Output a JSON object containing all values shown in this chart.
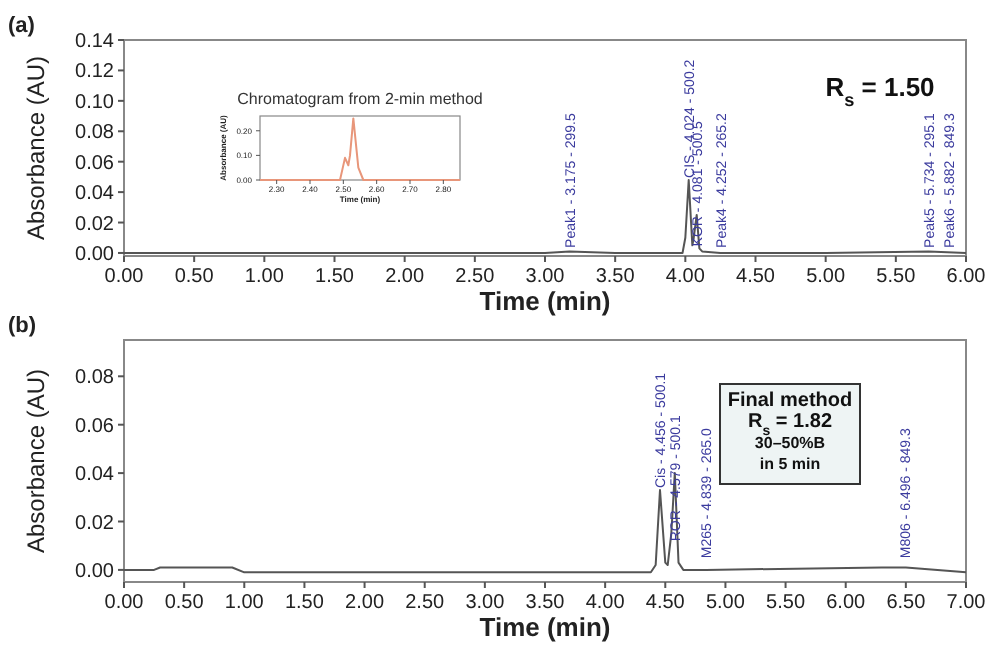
{
  "chart_data": [
    {
      "type": "line",
      "title": "(a)",
      "xlabel": "Time (min)",
      "ylabel": "Absorbance (AU)",
      "xlim": [
        0,
        6
      ],
      "ylim": [
        -0.002,
        0.14
      ],
      "xticks": [
        {
          "value": 0,
          "label": "0.00"
        },
        {
          "value": 0.5,
          "label": "0.50"
        },
        {
          "value": 1,
          "label": "1.00"
        },
        {
          "value": 1.5,
          "label": "1.50"
        },
        {
          "value": 2,
          "label": "2.00"
        },
        {
          "value": 2.5,
          "label": "2.50"
        },
        {
          "value": 3,
          "label": "3.00"
        },
        {
          "value": 3.5,
          "label": "3.50"
        },
        {
          "value": 4,
          "label": "4.00"
        },
        {
          "value": 4.5,
          "label": "4.50"
        },
        {
          "value": 5,
          "label": "5.00"
        },
        {
          "value": 5.5,
          "label": "5.50"
        },
        {
          "value": 6,
          "label": "6.00"
        }
      ],
      "yticks": [
        {
          "value": 0,
          "label": "0.00"
        },
        {
          "value": 0.02,
          "label": "0.02"
        },
        {
          "value": 0.04,
          "label": "0.04"
        },
        {
          "value": 0.06,
          "label": "0.06"
        },
        {
          "value": 0.08,
          "label": "0.08"
        },
        {
          "value": 0.1,
          "label": "0.10"
        },
        {
          "value": 0.12,
          "label": "0.12"
        },
        {
          "value": 0.14,
          "label": "0.14"
        }
      ],
      "grid": false,
      "marker": "none",
      "line_style": "solid",
      "series": [
        {
          "color": "#555555",
          "x": [
            0,
            1,
            2,
            3,
            3.175,
            3.5,
            3.98,
            4.0,
            4.024,
            4.05,
            4.06,
            4.081,
            4.1,
            4.12,
            4.25,
            5,
            5.734,
            6
          ],
          "values": [
            0,
            0,
            0,
            0,
            0.001,
            0,
            0,
            0.01,
            0.048,
            0.005,
            0.01,
            0.025,
            0.003,
            0.001,
            0,
            0,
            0.001,
            0
          ]
        }
      ],
      "annotations": [
        {
          "text": "Peak1 - 3.175 - 299.5",
          "x": 3.175,
          "y": 0.002
        },
        {
          "text": "CIS - 4.024 - 500.2",
          "x": 4.024,
          "y": 0.048
        },
        {
          "text": "KOR - 4.081 - 500.5",
          "x": 4.081,
          "y": 0.003
        },
        {
          "text": "Peak4 - 4.252 - 265.2",
          "x": 4.252,
          "y": 0.002
        },
        {
          "text": "Peak5 - 5.734 - 295.1",
          "x": 5.734,
          "y": 0.002
        },
        {
          "text": "Peak6 - 5.882 - 849.3",
          "x": 5.882,
          "y": 0.002
        },
        "R$_{s}$ = 1.50"
      ]
    },
    {
      "type": "line",
      "title": "Chromatogram from 2-min method",
      "xlabel": "Time (min)",
      "ylabel": "Absorbance (AU)",
      "xlim": [
        2.25,
        2.85
      ],
      "ylim": [
        0,
        0.26
      ],
      "xticks": [
        {
          "value": 2.3,
          "label": "2.30"
        },
        {
          "value": 2.4,
          "label": "2.40"
        },
        {
          "value": 2.5,
          "label": "2.50"
        },
        {
          "value": 2.6,
          "label": "2.60"
        },
        {
          "value": 2.7,
          "label": "2.70"
        },
        {
          "value": 2.8,
          "label": "2.80"
        }
      ],
      "yticks": [
        {
          "value": 0,
          "label": "0.00"
        },
        {
          "value": 0.1,
          "label": "0.10"
        },
        {
          "value": 0.2,
          "label": "0.20"
        }
      ],
      "grid": false,
      "marker": "none",
      "line_style": "solid",
      "series": [
        {
          "color": "#e8967a",
          "x": [
            2.25,
            2.49,
            2.505,
            2.515,
            2.52,
            2.53,
            2.545,
            2.56,
            2.85
          ],
          "values": [
            0,
            0,
            0.09,
            0.06,
            0.1,
            0.25,
            0.05,
            0,
            0
          ]
        }
      ]
    },
    {
      "type": "line",
      "title": "(b)",
      "xlabel": "Time (min)",
      "ylabel": "Absorbance (AU)",
      "xlim": [
        0,
        7
      ],
      "ylim": [
        -0.005,
        0.095
      ],
      "xticks": [
        {
          "value": 0,
          "label": "0.00"
        },
        {
          "value": 0.5,
          "label": "0.50"
        },
        {
          "value": 1,
          "label": "1.00"
        },
        {
          "value": 1.5,
          "label": "1.50"
        },
        {
          "value": 2,
          "label": "2.00"
        },
        {
          "value": 2.5,
          "label": "2.50"
        },
        {
          "value": 3,
          "label": "3.00"
        },
        {
          "value": 3.5,
          "label": "3.50"
        },
        {
          "value": 4,
          "label": "4.00"
        },
        {
          "value": 4.5,
          "label": "4.50"
        },
        {
          "value": 5,
          "label": "5.00"
        },
        {
          "value": 5.5,
          "label": "5.50"
        },
        {
          "value": 6,
          "label": "6.00"
        },
        {
          "value": 6.5,
          "label": "6.50"
        },
        {
          "value": 7,
          "label": "7.00"
        }
      ],
      "yticks": [
        {
          "value": 0,
          "label": "0.00"
        },
        {
          "value": 0.02,
          "label": "0.02"
        },
        {
          "value": 0.04,
          "label": "0.04"
        },
        {
          "value": 0.06,
          "label": "0.06"
        },
        {
          "value": 0.08,
          "label": "0.08"
        }
      ],
      "grid": false,
      "marker": "none",
      "line_style": "solid",
      "series": [
        {
          "color": "#555555",
          "x": [
            0,
            0.25,
            0.3,
            0.9,
            1.0,
            4.38,
            4.42,
            4.456,
            4.5,
            4.52,
            4.55,
            4.579,
            4.61,
            4.65,
            4.839,
            6.3,
            6.5,
            7.0
          ],
          "values": [
            0,
            0,
            0.001,
            0.001,
            -0.001,
            -0.001,
            0.002,
            0.033,
            0.003,
            0.002,
            0.015,
            0.04,
            0.003,
            0,
            0,
            0.001,
            0.001,
            -0.001
          ]
        }
      ],
      "annotations": [
        {
          "text": "Cis - 4.456 - 500.1",
          "x": 4.456,
          "y": 0.033
        },
        {
          "text": "ROR - 4.579 - 500.1",
          "x": 4.579,
          "y": 0.011
        },
        {
          "text": "M265 - 4.839 - 265.0",
          "x": 4.839,
          "y": 0.004
        },
        {
          "text": "M806 - 6.496 - 849.3",
          "x": 6.496,
          "y": 0.004
        },
        "Final method",
        "R$_{s}$ = 1.82",
        "30–50%B",
        "in 5 min"
      ]
    }
  ]
}
